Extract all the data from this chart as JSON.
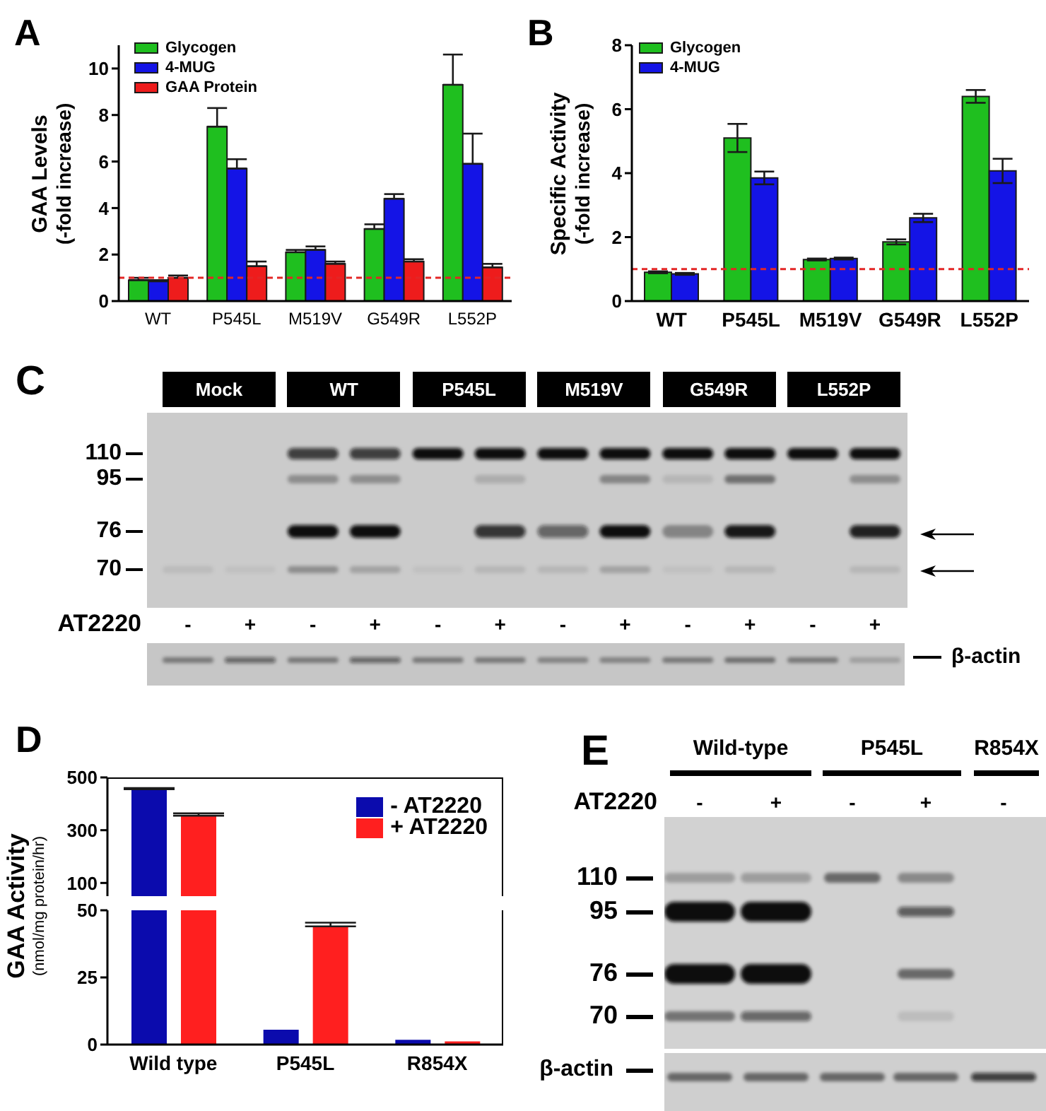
{
  "chart_data": [
    {
      "type": "bar",
      "title": "A",
      "ylabel": "GAA Levels\n(-fold increase)",
      "categories": [
        "WT",
        "P545L",
        "M519V",
        "G549R",
        "L552P"
      ],
      "series": [
        {
          "name": "Glycogen",
          "color": "#1fbf1f",
          "values": [
            0.9,
            7.5,
            2.1,
            3.1,
            9.3
          ],
          "errors": [
            [
              0.9,
              1.0
            ],
            [
              7.5,
              8.3
            ],
            [
              2.1,
              2.2
            ],
            [
              3.1,
              3.3
            ],
            [
              9.3,
              10.6
            ]
          ]
        },
        {
          "name": "4-MUG",
          "color": "#1414e6",
          "values": [
            0.85,
            5.7,
            2.2,
            4.4,
            5.9
          ],
          "errors": [
            [
              0.85,
              0.9
            ],
            [
              5.7,
              6.1
            ],
            [
              2.2,
              2.35
            ],
            [
              4.4,
              4.6
            ],
            [
              5.9,
              7.2
            ]
          ]
        },
        {
          "name": "GAA Protein",
          "color": "#ee1c1c",
          "values": [
            1.0,
            1.5,
            1.6,
            1.7,
            1.45
          ],
          "errors": [
            [
              1.0,
              1.1
            ],
            [
              1.5,
              1.7
            ],
            [
              1.6,
              1.7
            ],
            [
              1.7,
              1.8
            ],
            [
              1.45,
              1.6
            ]
          ]
        }
      ],
      "ylim": [
        0,
        11
      ],
      "yticks": [
        0,
        2,
        4,
        6,
        8,
        10
      ],
      "ref_lines": [
        {
          "axis": "y",
          "value": 1,
          "color": "#e32626",
          "line_style": "dashed"
        }
      ],
      "legend": "top left"
    },
    {
      "type": "bar",
      "title": "B",
      "ylabel": "Specific Activity\n(-fold increase)",
      "categories": [
        "WT",
        "P545L",
        "M519V",
        "G549R",
        "L552P"
      ],
      "series": [
        {
          "name": "Glycogen",
          "color": "#1fbf1f",
          "values": [
            0.9,
            5.1,
            1.3,
            1.85,
            6.4
          ],
          "errors": [
            0.03,
            0.44,
            0.03,
            0.08,
            0.2
          ]
        },
        {
          "name": "4-MUG",
          "color": "#1414e6",
          "values": [
            0.85,
            3.85,
            1.33,
            2.6,
            4.07
          ],
          "errors": [
            0.03,
            0.2,
            0.03,
            0.13,
            0.38
          ]
        }
      ],
      "ylim": [
        0,
        8
      ],
      "yticks": [
        0,
        2,
        4,
        6,
        8
      ],
      "ref_lines": [
        {
          "axis": "y",
          "value": 1,
          "color": "#e32626",
          "line_style": "dashed"
        }
      ],
      "legend": "top left"
    },
    {
      "type": "other",
      "title": "C",
      "categories": [
        "Mock",
        "WT",
        "P545L",
        "M519V",
        "G549R",
        "L552P"
      ],
      "annotations": [
        "110",
        "95",
        "76",
        "70",
        "AT2220",
        "-",
        "+",
        "-",
        "+",
        "-",
        "+",
        "-",
        "+",
        "-",
        "+",
        "-",
        "+",
        "β-actin"
      ]
    },
    {
      "type": "bar",
      "title": "D",
      "categories": [
        null,
        null,
        null
      ],
      "series": [
        {
          "name": "- AT2220",
          "color": "#0b0bad",
          "values": [
            455,
            null,
            null
          ],
          "errors": [
            [
              455,
              460
            ],
            null,
            null
          ]
        },
        {
          "name": "+ AT2220",
          "color": "#ff1f1f",
          "values": [
            355,
            null,
            null
          ],
          "errors": [
            [
              355,
              364
            ],
            null,
            null
          ]
        }
      ],
      "ylim": [
        50,
        500
      ],
      "yticks": [
        100,
        300,
        500
      ],
      "tick_labels": "y",
      "legend": "top right"
    },
    {
      "type": "bar",
      "ylabel": "GAA Activity\n(nmol/mg protein/hr)",
      "categories": [
        "Wild type",
        "P545L",
        "R854X"
      ],
      "series": [
        {
          "color": "#0b0bad",
          "values": [
            null,
            5.5,
            1.8
          ]
        },
        {
          "color": "#ff1f1f",
          "values": [
            null,
            44,
            1.2
          ],
          "errors": [
            null,
            [
              44,
              45.4
            ],
            null
          ]
        }
      ],
      "ylim": [
        0,
        50
      ],
      "yticks": [
        0,
        25,
        50
      ]
    },
    {
      "type": "other",
      "title": "E",
      "categories": [
        "Wild-type",
        "P545L",
        "R854X"
      ],
      "annotations": [
        "AT2220",
        "-",
        "+",
        "-",
        "+",
        "-",
        "110",
        "95",
        "76",
        "70",
        "β-actin"
      ]
    }
  ]
}
